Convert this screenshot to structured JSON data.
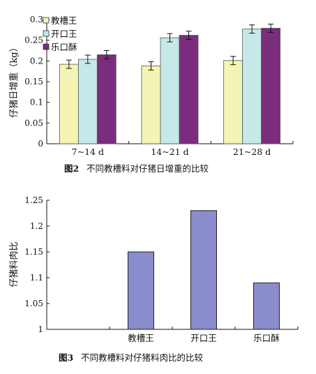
{
  "chart_data": [
    {
      "type": "bar",
      "figure_label": "图2",
      "caption": "不同教槽料对仔猪日增重的比较",
      "ylabel": "仔猪日增重（kg）",
      "xlabel": "",
      "categories": [
        "7~14 d",
        "14~21 d",
        "21~28 d"
      ],
      "ylim": [
        0,
        0.3
      ],
      "yticks": [
        "0",
        "0.05",
        "0.1",
        "0.15",
        "0.2",
        "0.25",
        "0.3"
      ],
      "legend_position": "top-left",
      "error_bars": true,
      "series": [
        {
          "name": "教槽王",
          "color": "#f4f4b4",
          "values": [
            0.192,
            0.188,
            0.201
          ],
          "errors": [
            0.01,
            0.01,
            0.01
          ]
        },
        {
          "name": "开口王",
          "color": "#c6e8e8",
          "values": [
            0.204,
            0.256,
            0.277
          ],
          "errors": [
            0.01,
            0.01,
            0.01
          ]
        },
        {
          "name": "乐口酥",
          "color": "#7b2c7d",
          "values": [
            0.215,
            0.262,
            0.279
          ],
          "errors": [
            0.01,
            0.01,
            0.01
          ]
        }
      ]
    },
    {
      "type": "bar",
      "figure_label": "图3",
      "caption": "不同教槽料对仔猪料肉比的比较",
      "ylabel": "仔猪料肉比",
      "xlabel": "",
      "categories": [
        "",
        "教槽王",
        "开口王",
        "乐口酥"
      ],
      "ylim": [
        1,
        1.25
      ],
      "yticks": [
        "1",
        "1.05",
        "1.1",
        "1.15",
        "1.2",
        "1.25"
      ],
      "color": "#8a8ccc",
      "values": [
        null,
        1.15,
        1.23,
        1.09
      ]
    }
  ]
}
